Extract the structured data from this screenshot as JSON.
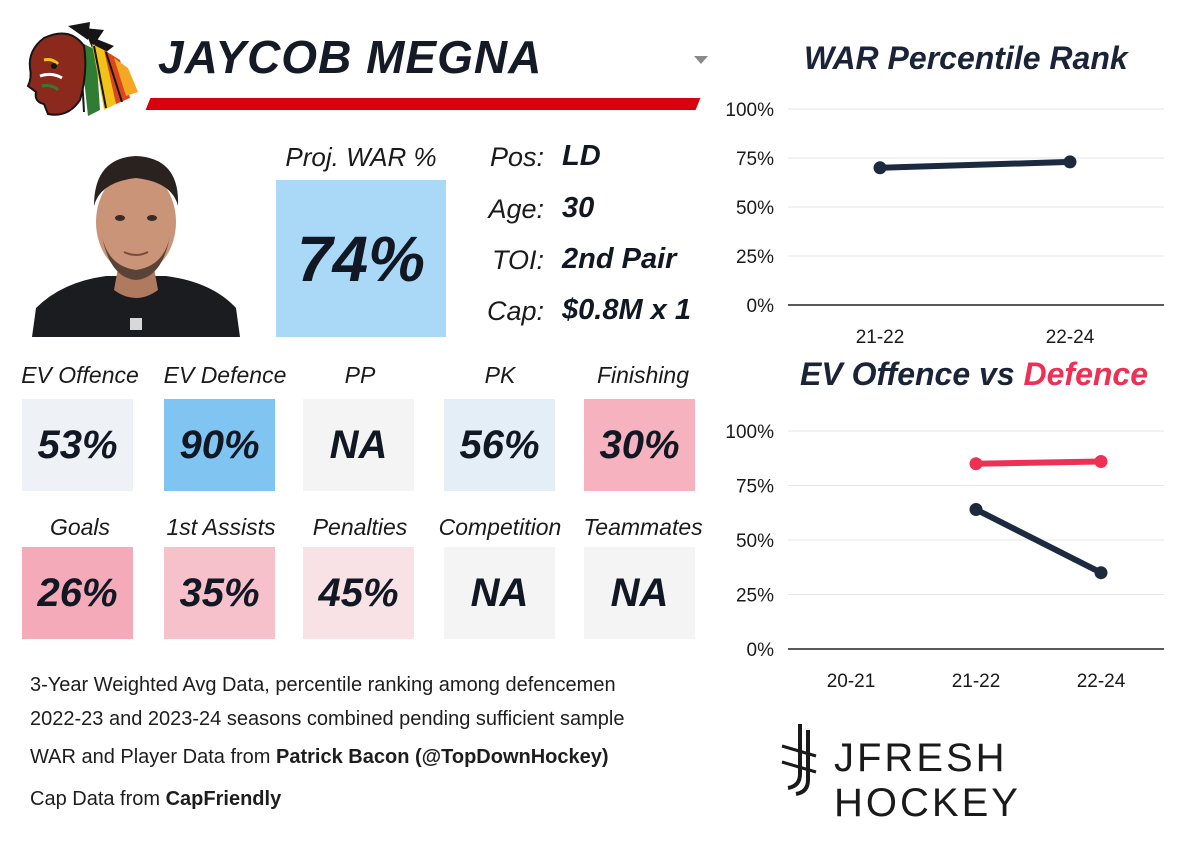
{
  "header": {
    "player_name": "JAYCOB MEGNA"
  },
  "proj_war": {
    "label": "Proj. WAR %",
    "value": "74%",
    "color": "#a9d9f7"
  },
  "info": [
    {
      "key": "Pos:",
      "value": "LD"
    },
    {
      "key": "Age:",
      "value": "30"
    },
    {
      "key": "TOI:",
      "value": "2nd Pair"
    },
    {
      "key": "Cap:",
      "value": "$0.8M x 1"
    }
  ],
  "metrics": [
    {
      "label": "EV Offence",
      "value": "53%",
      "color": "#eef2f6"
    },
    {
      "label": "EV Defence",
      "value": "90%",
      "color": "#80c4f2"
    },
    {
      "label": "PP",
      "value": "NA",
      "color": "#f4f4f5"
    },
    {
      "label": "PK",
      "value": "56%",
      "color": "#e3eef7"
    },
    {
      "label": "Finishing",
      "value": "30%",
      "color": "#f6b3bf"
    },
    {
      "label": "Goals",
      "value": "26%",
      "color": "#f4aab8"
    },
    {
      "label": "1st Assists",
      "value": "35%",
      "color": "#f6c1cb"
    },
    {
      "label": "Penalties",
      "value": "45%",
      "color": "#f8e2e6"
    },
    {
      "label": "Competition",
      "value": "NA",
      "color": "#f4f4f5"
    },
    {
      "label": "Teammates",
      "value": "NA",
      "color": "#f4f4f5"
    }
  ],
  "notes": {
    "line1": "3-Year Weighted Avg Data, percentile ranking among defencemen",
    "line2": "2022-23 and 2023-24 seasons combined pending sufficient sample",
    "line3_prefix": "WAR and Player Data from ",
    "line3_bold": "Patrick Bacon (@TopDownHockey)",
    "line4_prefix": "Cap Data from ",
    "line4_bold": "CapFriendly"
  },
  "brand": {
    "text": "JFRESH HOCKEY"
  },
  "chart_titles": {
    "chart1": "WAR Percentile Rank",
    "chart2_part1": "EV Offence vs ",
    "chart2_part2": "Defence"
  },
  "chart_data": [
    {
      "type": "line",
      "title": "WAR Percentile Rank",
      "categories": [
        "21-22",
        "22-24"
      ],
      "ylim": [
        0,
        100
      ],
      "yticks": [
        "0%",
        "25%",
        "50%",
        "75%",
        "100%"
      ],
      "grid": true,
      "series": [
        {
          "values": [
            70,
            73
          ],
          "color": "#1c2a40"
        }
      ]
    },
    {
      "type": "line",
      "title": "EV Offence vs Defence",
      "categories": [
        "20-21",
        "21-22",
        "22-24"
      ],
      "ylim": [
        0,
        100
      ],
      "yticks": [
        "0%",
        "25%",
        "50%",
        "75%",
        "100%"
      ],
      "grid": true,
      "series": [
        {
          "name": "EV Offence",
          "values": [
            null,
            64,
            35
          ],
          "color": "#1c2a40"
        },
        {
          "name": "Defence",
          "values": [
            null,
            85,
            86
          ],
          "color": "#ee3055"
        }
      ]
    }
  ]
}
